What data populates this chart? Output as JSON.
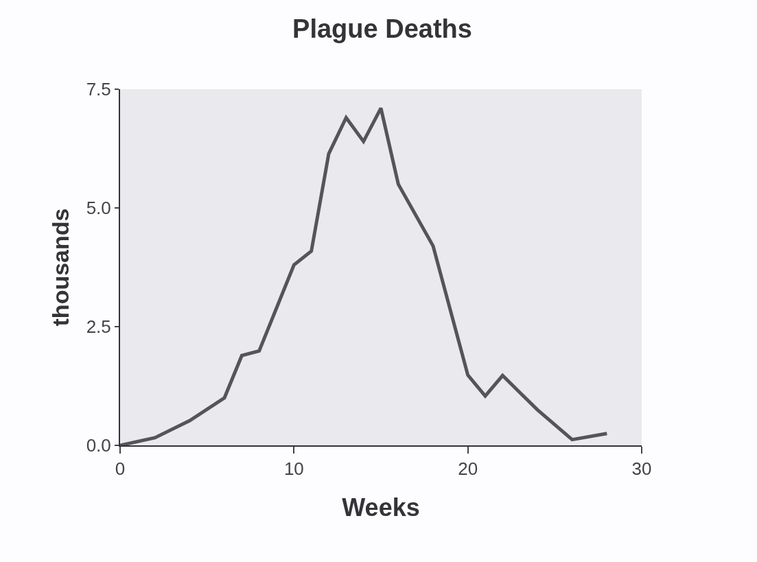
{
  "chart_data": {
    "type": "line",
    "title": "Plague Deaths",
    "xlabel": "Weeks",
    "ylabel": "thousands",
    "x": [
      0,
      2,
      4,
      6,
      7,
      8,
      10,
      11,
      12,
      13,
      14,
      15,
      16,
      18,
      20,
      21,
      22,
      24,
      26,
      28
    ],
    "series": [
      {
        "color": "#555559",
        "values": [
          0,
          0.16,
          0.52,
          1.0,
          1.89,
          1.99,
          3.8,
          4.09,
          6.14,
          6.9,
          6.4,
          7.1,
          5.5,
          4.2,
          1.48,
          1.04,
          1.47,
          0.75,
          0.12,
          0.25
        ]
      }
    ],
    "xlim": [
      0,
      30
    ],
    "xticks": [
      0,
      10,
      20,
      30
    ],
    "ylim": [
      0,
      7.5
    ],
    "yticks": [
      {
        "value": 0,
        "label": "0.0"
      },
      {
        "value": 2.5,
        "label": "2.5"
      },
      {
        "value": 5,
        "label": "5.0"
      },
      {
        "value": 7.5,
        "label": "7.5"
      }
    ],
    "grid": false,
    "legend": false,
    "marker": "none",
    "line_style": "solid"
  }
}
